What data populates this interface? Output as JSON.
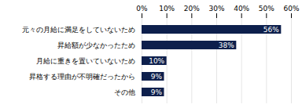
{
  "chart_data": {
    "type": "bar",
    "orientation": "horizontal",
    "categories": [
      "元々の月給に満足をしていないため",
      "昇給額が少なかったため",
      "月給に重きを置いていないため",
      "昇格する理由が不明確だったから",
      "その他"
    ],
    "values": [
      56,
      38,
      10,
      9,
      9
    ],
    "value_labels": [
      "56%",
      "38%",
      "10%",
      "9%",
      "9%"
    ],
    "data_labels": true,
    "color": "#0d1f4c",
    "xlim": [
      0,
      60
    ],
    "xticks": [
      {
        "value": 0,
        "label": "0%"
      },
      {
        "value": 10,
        "label": "10%"
      },
      {
        "value": 20,
        "label": "20%"
      },
      {
        "value": 30,
        "label": "30%"
      },
      {
        "value": 40,
        "label": "40%"
      },
      {
        "value": 50,
        "label": "50%"
      },
      {
        "value": 60,
        "label": "60%"
      }
    ],
    "grid": true
  }
}
